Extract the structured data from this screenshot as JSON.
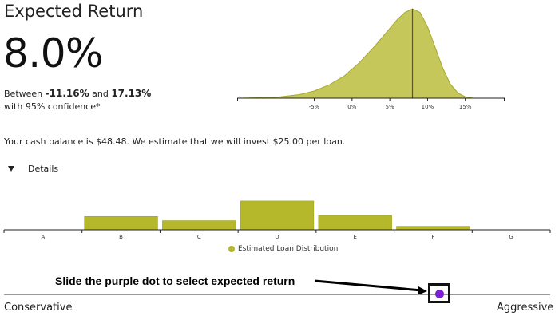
{
  "header": {
    "title": "Expected Return",
    "value": "8.0%"
  },
  "confidence": {
    "prefix": "Between",
    "low": "-11.16%",
    "connector": "and",
    "high": "17.13%",
    "suffix": "with 95% confidence*"
  },
  "cash": {
    "text": "Your cash balance is $48.48. We estimate that we will invest $25.00 per loan."
  },
  "details": {
    "label": "Details"
  },
  "instruction": {
    "text": "Slide the purple dot to select expected return"
  },
  "slider": {
    "left_label": "Conservative",
    "right_label": "Aggressive",
    "position": 0.795,
    "dot_color": "#7e1fd6"
  },
  "colors": {
    "accent": "#b5b82a",
    "curve_fill": "#c5c75a",
    "curve_stroke": "#a6a930",
    "marker": "#5a5a1a"
  },
  "chart_data": [
    {
      "type": "area",
      "title": "",
      "xlabel": "",
      "ylabel": "",
      "x_ticks": [
        "-5%",
        "0%",
        "5%",
        "10%",
        "15%"
      ],
      "xlim": [
        -15,
        20
      ],
      "marker_x": 8.0,
      "points": [
        [
          -15,
          0.0
        ],
        [
          -10,
          0.01
        ],
        [
          -7,
          0.04
        ],
        [
          -5,
          0.08
        ],
        [
          -3,
          0.15
        ],
        [
          -1,
          0.25
        ],
        [
          1,
          0.4
        ],
        [
          3,
          0.58
        ],
        [
          5,
          0.78
        ],
        [
          6,
          0.88
        ],
        [
          7,
          0.96
        ],
        [
          8,
          1.0
        ],
        [
          9,
          0.96
        ],
        [
          10,
          0.8
        ],
        [
          11,
          0.57
        ],
        [
          12,
          0.34
        ],
        [
          13,
          0.16
        ],
        [
          14,
          0.06
        ],
        [
          15,
          0.015
        ],
        [
          16,
          0.0
        ]
      ]
    },
    {
      "type": "bar",
      "title": "",
      "categories": [
        "A",
        "B",
        "C",
        "D",
        "E",
        "F",
        "G"
      ],
      "values": [
        0,
        19,
        13,
        41,
        20,
        5,
        0
      ],
      "ylim": [
        0,
        50
      ],
      "legend": "Estimated Loan Distribution"
    }
  ]
}
